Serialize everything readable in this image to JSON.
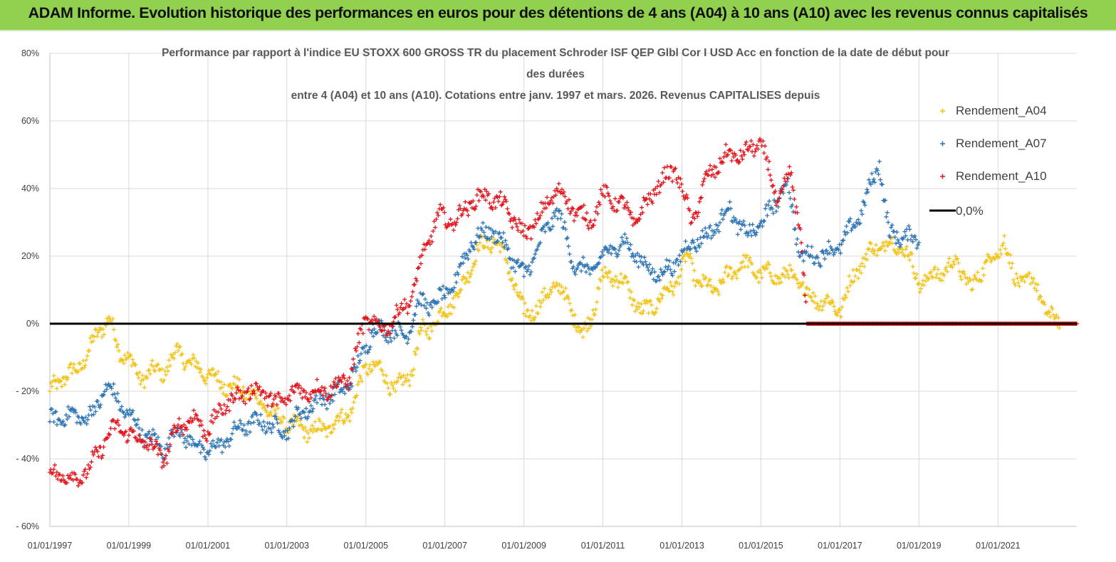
{
  "banner": {
    "title": "ADAM Informe. Evolution historique des performances en euros pour des détentions de 4 ans (A04) à 10 ans (A10) avec les revenus connus capitalisés"
  },
  "colors": {
    "banner_bg": "#92d050",
    "A04": "#f2c318",
    "A07": "#2e75b6",
    "A10": "#e3141b",
    "zero_line": "#000000",
    "grid": "#d9d9d9"
  },
  "chart_data": {
    "type": "scatter",
    "title_lines": [
      "Performance par rapport à l'indice EU STOXX 600 GROSS TR  du placement Schroder ISF QEP Glbl Cor I USD Acc en fonction de la date de début pour",
      "des durées",
      "entre 4 (A04) et 10 ans (A10). Cotations entre janv. 1997 et mars. 2026. Revenus CAPITALISES depuis"
    ],
    "xlabel": "",
    "ylabel": "",
    "xlim": [
      "1997-01-01",
      "2022-12-31"
    ],
    "ylim": [
      -60,
      80
    ],
    "y_ticks": [
      80,
      60,
      40,
      20,
      0,
      -20,
      -40,
      -60
    ],
    "y_tick_labels": [
      "80%",
      "60%",
      "40%",
      "20%",
      "0%",
      "- 20%",
      "- 40%",
      "- 60%"
    ],
    "x_ticks": [
      "1997-01-01",
      "1999-01-01",
      "2001-01-01",
      "2003-01-01",
      "2005-01-01",
      "2007-01-01",
      "2009-01-01",
      "2011-01-01",
      "2013-01-01",
      "2015-01-01",
      "2017-01-01",
      "2019-01-01",
      "2021-01-01"
    ],
    "x_tick_labels": [
      "01/01/1997",
      "01/01/1999",
      "01/01/2001",
      "01/01/2003",
      "01/01/2005",
      "01/01/2007",
      "01/01/2009",
      "01/01/2011",
      "01/01/2013",
      "01/01/2015",
      "01/01/2017",
      "01/01/2019",
      "01/01/2021"
    ],
    "grid": "vertical and horizontal",
    "legend_position": "right",
    "series": [
      {
        "name": "Rendement_A04",
        "key": "A04",
        "marker": "+",
        "points": [
          [
            "1997-01-01",
            -20
          ],
          [
            "1997-05-01",
            -16
          ],
          [
            "1997-09-01",
            -14
          ],
          [
            "1998-01-01",
            -8
          ],
          [
            "1998-04-01",
            -2
          ],
          [
            "1998-07-01",
            2
          ],
          [
            "1998-10-01",
            -8
          ],
          [
            "1999-01-01",
            -10
          ],
          [
            "1999-04-01",
            -16
          ],
          [
            "1999-09-01",
            -14
          ],
          [
            "1999-12-01",
            -14
          ],
          [
            "2000-04-01",
            -8
          ],
          [
            "2000-08-01",
            -12
          ],
          [
            "2001-01-01",
            -15
          ],
          [
            "2001-06-01",
            -18
          ],
          [
            "2002-01-01",
            -20
          ],
          [
            "2002-06-01",
            -24
          ],
          [
            "2002-10-01",
            -28
          ],
          [
            "2003-03-01",
            -30
          ],
          [
            "2003-09-01",
            -32
          ],
          [
            "2004-03-01",
            -30
          ],
          [
            "2004-09-01",
            -25
          ],
          [
            "2005-01-01",
            -12
          ],
          [
            "2005-06-01",
            -14
          ],
          [
            "2005-10-01",
            -20
          ],
          [
            "2006-03-01",
            -14
          ],
          [
            "2006-06-01",
            -2
          ],
          [
            "2006-10-01",
            0
          ],
          [
            "2007-02-01",
            5
          ],
          [
            "2007-06-01",
            10
          ],
          [
            "2007-11-01",
            22
          ],
          [
            "2008-04-01",
            25
          ],
          [
            "2008-08-01",
            18
          ],
          [
            "2009-01-01",
            3
          ],
          [
            "2009-06-01",
            5
          ],
          [
            "2009-10-01",
            12
          ],
          [
            "2010-03-01",
            6
          ],
          [
            "2010-07-01",
            -4
          ],
          [
            "2010-10-01",
            4
          ],
          [
            "2011-01-01",
            14
          ],
          [
            "2011-05-01",
            14
          ],
          [
            "2011-09-01",
            10
          ],
          [
            "2012-01-01",
            3
          ],
          [
            "2012-06-01",
            7
          ],
          [
            "2012-11-01",
            12
          ],
          [
            "2013-03-01",
            20
          ],
          [
            "2013-06-01",
            12
          ],
          [
            "2013-11-01",
            10
          ],
          [
            "2014-03-01",
            14
          ],
          [
            "2014-07-01",
            18
          ],
          [
            "2015-01-01",
            15
          ],
          [
            "2015-06-01",
            14
          ],
          [
            "2015-11-01",
            14
          ],
          [
            "2016-04-01",
            8
          ],
          [
            "2016-10-01",
            6
          ],
          [
            "2017-01-01",
            4
          ],
          [
            "2017-06-01",
            16
          ],
          [
            "2017-11-01",
            22
          ],
          [
            "2018-04-01",
            24
          ],
          [
            "2018-09-01",
            22
          ],
          [
            "2019-01-01",
            12
          ],
          [
            "2019-05-01",
            14
          ],
          [
            "2019-09-01",
            16
          ],
          [
            "2020-01-01",
            18
          ],
          [
            "2020-05-01",
            10
          ],
          [
            "2020-09-01",
            18
          ],
          [
            "2021-01-01",
            20
          ],
          [
            "2021-03-01",
            26
          ],
          [
            "2021-06-01",
            12
          ],
          [
            "2021-10-01",
            14
          ],
          [
            "2022-02-01",
            8
          ],
          [
            "2022-05-01",
            2
          ],
          [
            "2022-08-01",
            0
          ],
          [
            "2022-12-31",
            0
          ]
        ]
      },
      {
        "name": "Rendement_A07",
        "key": "A07",
        "marker": "+",
        "points": [
          [
            "1997-01-01",
            -29
          ],
          [
            "1997-06-01",
            -27
          ],
          [
            "1997-11-01",
            -28
          ],
          [
            "1998-03-01",
            -26
          ],
          [
            "1998-06-01",
            -18
          ],
          [
            "1998-09-01",
            -22
          ],
          [
            "1999-01-01",
            -27
          ],
          [
            "1999-06-01",
            -33
          ],
          [
            "1999-12-01",
            -37
          ],
          [
            "2000-04-01",
            -31
          ],
          [
            "2000-09-01",
            -36
          ],
          [
            "2001-01-01",
            -38
          ],
          [
            "2001-06-01",
            -35
          ],
          [
            "2001-12-01",
            -30
          ],
          [
            "2002-06-01",
            -29
          ],
          [
            "2002-12-01",
            -32
          ],
          [
            "2003-06-01",
            -26
          ],
          [
            "2003-12-01",
            -22
          ],
          [
            "2004-06-01",
            -20
          ],
          [
            "2004-10-01",
            -14
          ],
          [
            "2005-03-01",
            -2
          ],
          [
            "2005-09-01",
            -2
          ],
          [
            "2006-01-01",
            -4
          ],
          [
            "2006-05-01",
            6
          ],
          [
            "2006-10-01",
            6
          ],
          [
            "2007-03-01",
            10
          ],
          [
            "2007-09-01",
            24
          ],
          [
            "2008-03-01",
            28
          ],
          [
            "2008-08-01",
            22
          ],
          [
            "2009-01-01",
            14
          ],
          [
            "2009-06-01",
            24
          ],
          [
            "2009-11-01",
            34
          ],
          [
            "2010-05-01",
            16
          ],
          [
            "2010-10-01",
            16
          ],
          [
            "2011-03-01",
            22
          ],
          [
            "2011-08-01",
            24
          ],
          [
            "2012-01-01",
            18
          ],
          [
            "2012-06-01",
            14
          ],
          [
            "2012-11-01",
            18
          ],
          [
            "2013-04-01",
            24
          ],
          [
            "2013-09-01",
            26
          ],
          [
            "2014-03-01",
            34
          ],
          [
            "2014-09-01",
            26
          ],
          [
            "2015-03-01",
            32
          ],
          [
            "2015-09-01",
            42
          ],
          [
            "2016-01-01",
            20
          ],
          [
            "2016-06-01",
            20
          ],
          [
            "2016-12-01",
            22
          ],
          [
            "2017-06-01",
            30
          ],
          [
            "2017-11-01",
            42
          ],
          [
            "2018-01-01",
            48
          ],
          [
            "2018-04-01",
            26
          ],
          [
            "2018-09-01",
            26
          ],
          [
            "2019-01-01",
            24
          ]
        ]
      },
      {
        "name": "Rendement_A10",
        "key": "A10",
        "marker": "+",
        "points": [
          [
            "1997-01-01",
            -44
          ],
          [
            "1997-05-01",
            -45
          ],
          [
            "1997-09-01",
            -46
          ],
          [
            "1998-01-01",
            -43
          ],
          [
            "1998-06-01",
            -34
          ],
          [
            "1998-10-01",
            -30
          ],
          [
            "1999-01-01",
            -33
          ],
          [
            "1999-06-01",
            -35
          ],
          [
            "1999-12-01",
            -40
          ],
          [
            "2000-04-01",
            -30
          ],
          [
            "2000-09-01",
            -28
          ],
          [
            "2001-01-01",
            -32
          ],
          [
            "2001-06-01",
            -24
          ],
          [
            "2002-01-01",
            -20
          ],
          [
            "2002-06-01",
            -20
          ],
          [
            "2002-10-01",
            -24
          ],
          [
            "2003-03-01",
            -20
          ],
          [
            "2003-09-01",
            -20
          ],
          [
            "2004-03-01",
            -19
          ],
          [
            "2004-08-01",
            -16
          ],
          [
            "2005-01-01",
            2
          ],
          [
            "2005-06-01",
            -2
          ],
          [
            "2005-10-01",
            2
          ],
          [
            "2006-03-01",
            8
          ],
          [
            "2006-07-01",
            22
          ],
          [
            "2006-11-01",
            32
          ],
          [
            "2007-04-01",
            30
          ],
          [
            "2007-09-01",
            36
          ],
          [
            "2008-02-01",
            38
          ],
          [
            "2008-08-01",
            34
          ],
          [
            "2009-01-01",
            26
          ],
          [
            "2009-06-01",
            32
          ],
          [
            "2009-11-01",
            40
          ],
          [
            "2010-04-01",
            34
          ],
          [
            "2010-09-01",
            30
          ],
          [
            "2011-01-01",
            38
          ],
          [
            "2011-06-01",
            36
          ],
          [
            "2011-11-01",
            30
          ],
          [
            "2012-05-01",
            40
          ],
          [
            "2012-11-01",
            46
          ],
          [
            "2013-04-01",
            30
          ],
          [
            "2013-09-01",
            44
          ],
          [
            "2014-03-01",
            50
          ],
          [
            "2014-08-01",
            50
          ],
          [
            "2015-01-01",
            54
          ],
          [
            "2015-06-01",
            36
          ],
          [
            "2015-10-01",
            44
          ],
          [
            "2016-01-01",
            28
          ],
          [
            "2016-03-01",
            0
          ],
          [
            "2022-12-31",
            0
          ]
        ]
      }
    ],
    "reference_line": {
      "name": "0,0%",
      "value": 0
    }
  }
}
